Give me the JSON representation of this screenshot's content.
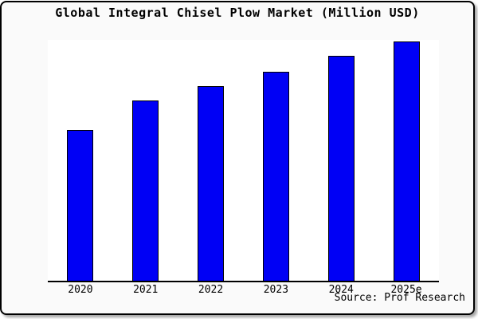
{
  "title": "Global Integral Chisel Plow Market (Million USD)",
  "source_note": "Source: Prof Research",
  "colors": {
    "bar_fill": "#0000F5",
    "bar_border": "#000000",
    "frame_background": "#FAFAFA",
    "plot_background": "#FFFFFF",
    "axis": "#000000",
    "text": "#000000"
  },
  "chart_data": {
    "type": "bar",
    "title": "Global Integral Chisel Plow Market (Million USD)",
    "categories": [
      "2020",
      "2021",
      "2022",
      "2023",
      "2024",
      "2025e"
    ],
    "values": [
      63,
      75.5,
      81.5,
      87.5,
      94,
      100
    ],
    "value_note": "no y-axis or data labels shown; values estimated from bar heights, normalized to 2025e = 100",
    "xlabel": "",
    "ylabel": "",
    "ylim": [
      0,
      100.7
    ],
    "grid": false,
    "legend": "none",
    "source": "Source: Prof Research"
  }
}
